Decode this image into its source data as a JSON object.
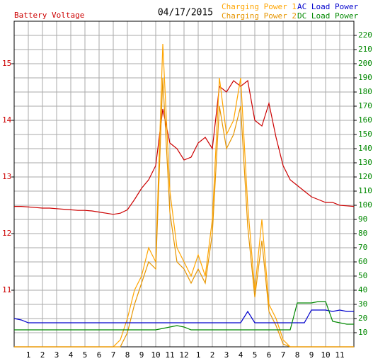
{
  "chart_data": {
    "type": "line",
    "title": "04/17/2015",
    "x": [
      0,
      0.5,
      1,
      1.5,
      2,
      2.5,
      3,
      3.5,
      4,
      4.5,
      5,
      5.5,
      6,
      6.5,
      7,
      7.5,
      8,
      8.5,
      9,
      9.5,
      10,
      10.5,
      11,
      11.5,
      12,
      12.5,
      13,
      13.5,
      14,
      14.5,
      15,
      15.5,
      16,
      16.5,
      17,
      17.5,
      18,
      18.5,
      19,
      19.5,
      20,
      20.5,
      21,
      21.5,
      22,
      22.5,
      23,
      23.5,
      24
    ],
    "series": [
      {
        "name": "Battery Voltage",
        "color": "#cc0000",
        "axis": "y",
        "values": [
          12.48,
          12.48,
          12.47,
          12.46,
          12.45,
          12.45,
          12.44,
          12.43,
          12.42,
          12.41,
          12.41,
          12.4,
          12.38,
          12.36,
          12.34,
          12.36,
          12.42,
          12.6,
          12.8,
          12.95,
          13.2,
          14.2,
          13.6,
          13.5,
          13.3,
          13.35,
          13.6,
          13.7,
          13.5,
          14.6,
          14.5,
          14.7,
          14.6,
          14.7,
          14.0,
          13.9,
          14.3,
          13.7,
          13.2,
          12.95,
          12.85,
          12.75,
          12.65,
          12.6,
          12.55,
          12.55,
          12.5,
          12.49,
          12.48
        ]
      },
      {
        "name": "Charging Power 1",
        "color": "#ffa500",
        "axis": "y2",
        "values": [
          0,
          0,
          0,
          0,
          0,
          0,
          0,
          0,
          0,
          0,
          0,
          0,
          0,
          0,
          0,
          5,
          20,
          40,
          50,
          70,
          60,
          214,
          110,
          70,
          60,
          50,
          65,
          50,
          90,
          190,
          150,
          160,
          190,
          100,
          40,
          90,
          30,
          20,
          5,
          0,
          0,
          0,
          0,
          0,
          0,
          0,
          0,
          0,
          0
        ]
      },
      {
        "name": "Charging Power 2",
        "color": "#e69500",
        "axis": "y2",
        "values": [
          0,
          0,
          0,
          0,
          0,
          0,
          0,
          0,
          0,
          0,
          0,
          0,
          0,
          0,
          0,
          0,
          10,
          30,
          45,
          60,
          55,
          190,
          95,
          60,
          55,
          45,
          55,
          45,
          80,
          170,
          140,
          150,
          170,
          85,
          35,
          75,
          25,
          15,
          2,
          0,
          0,
          0,
          0,
          0,
          0,
          0,
          0,
          0,
          0
        ]
      },
      {
        "name": "AC Load Power",
        "color": "#0000cc",
        "axis": "y2",
        "values": [
          20,
          19,
          17,
          17,
          17,
          17,
          17,
          17,
          17,
          17,
          17,
          17,
          17,
          17,
          17,
          17,
          17,
          17,
          17,
          17,
          17,
          17,
          17,
          17,
          17,
          17,
          17,
          17,
          17,
          17,
          17,
          17,
          17,
          25,
          17,
          17,
          17,
          17,
          17,
          17,
          17,
          17,
          26,
          26,
          26,
          25,
          26,
          25,
          25
        ]
      },
      {
        "name": "DC Load Power",
        "color": "#008800",
        "axis": "y2",
        "values": [
          12,
          12,
          12,
          12,
          12,
          12,
          12,
          12,
          12,
          12,
          12,
          12,
          12,
          12,
          12,
          12,
          12,
          12,
          12,
          12,
          12,
          13,
          14,
          15,
          14,
          12,
          12,
          12,
          12,
          12,
          12,
          12,
          12,
          12,
          12,
          12,
          12,
          12,
          12,
          12,
          31,
          31,
          31,
          32,
          32,
          18,
          17,
          16,
          16
        ]
      }
    ],
    "xlim": [
      0,
      24
    ],
    "xticks": [
      1,
      2,
      3,
      4,
      5,
      6,
      7,
      8,
      9,
      10,
      11,
      12,
      {
        "value": 13,
        "label": "1"
      },
      {
        "value": 14,
        "label": "2"
      },
      {
        "value": 15,
        "label": "3"
      },
      {
        "value": 16,
        "label": "4"
      },
      {
        "value": 17,
        "label": "5"
      },
      {
        "value": 18,
        "label": "6"
      },
      {
        "value": 19,
        "label": "7"
      },
      {
        "value": 20,
        "label": "8"
      },
      {
        "value": 21,
        "label": "9"
      },
      {
        "value": 22,
        "label": "10"
      },
      {
        "value": 23,
        "label": "11"
      }
    ],
    "ylim": [
      10,
      15.75
    ],
    "yticks": [
      11,
      12,
      13,
      14,
      15
    ],
    "y2lim": [
      0,
      230
    ],
    "y2ticks": [
      10,
      20,
      30,
      40,
      50,
      60,
      70,
      80,
      90,
      100,
      110,
      120,
      130,
      140,
      150,
      160,
      170,
      180,
      190,
      200,
      210,
      220
    ],
    "grid": true
  }
}
